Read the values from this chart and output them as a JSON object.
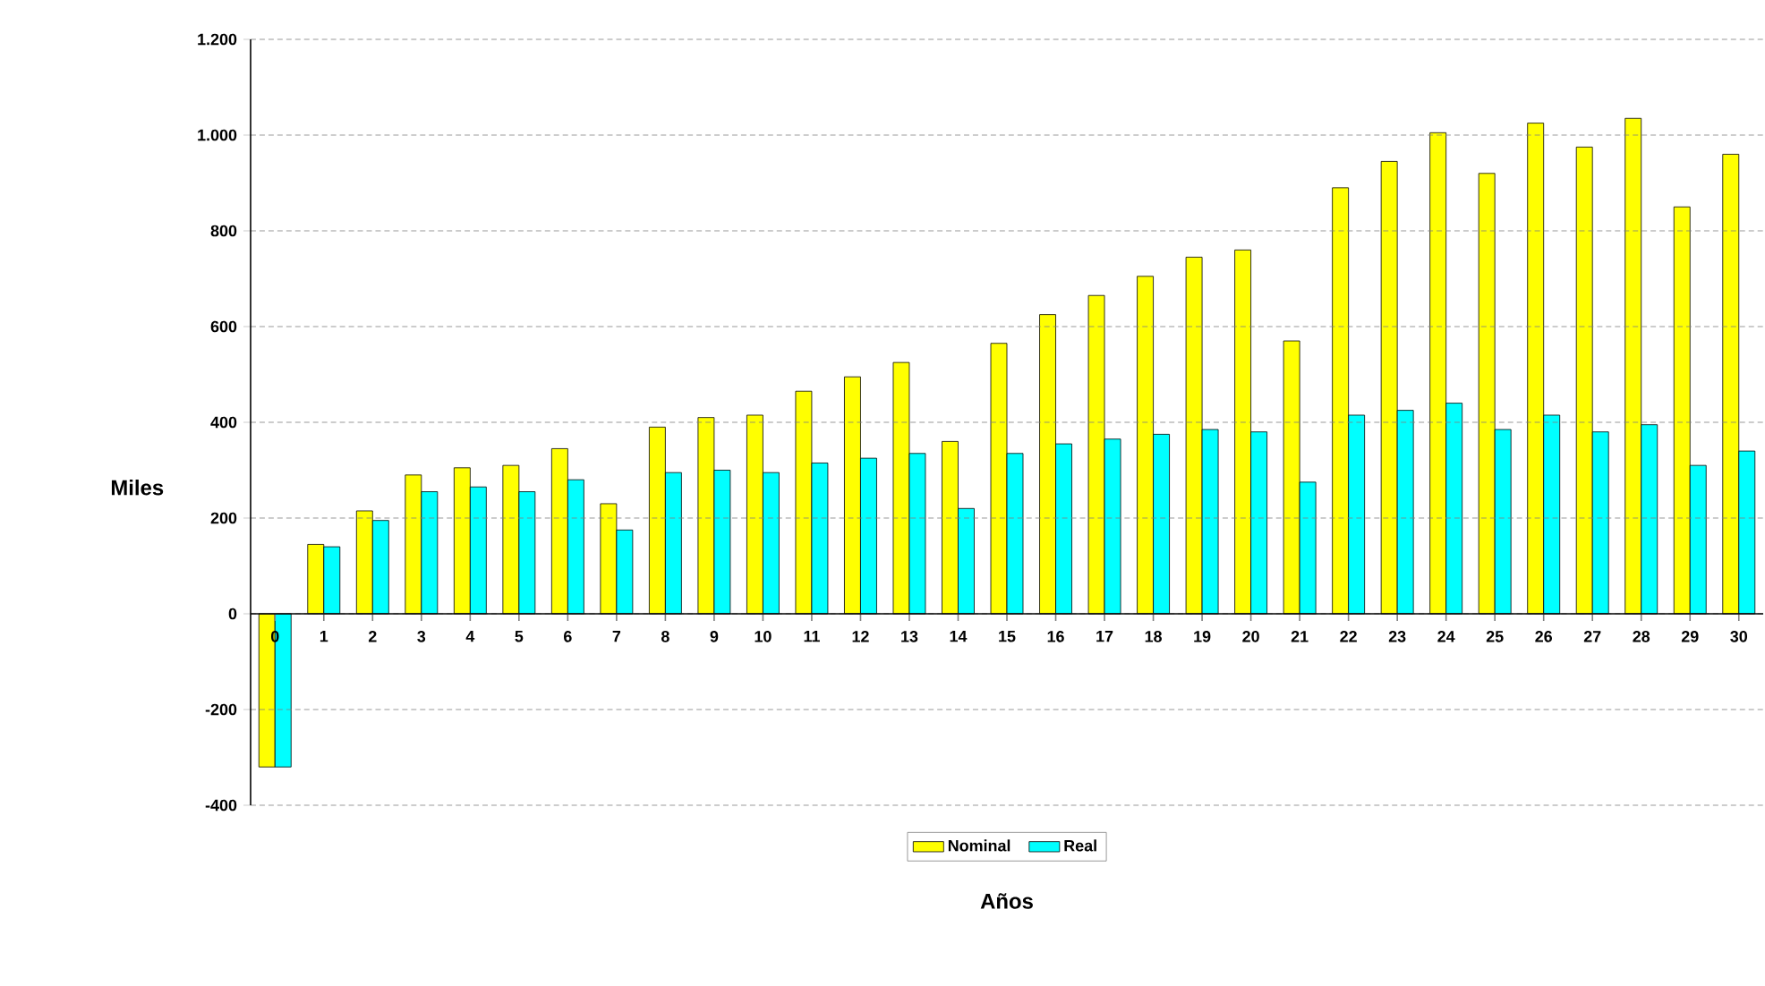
{
  "chart_data": {
    "type": "bar",
    "xlabel": "Años",
    "ylabel": "Miles",
    "categories": [
      "0",
      "1",
      "2",
      "3",
      "4",
      "5",
      "6",
      "7",
      "8",
      "9",
      "10",
      "11",
      "12",
      "13",
      "14",
      "15",
      "16",
      "17",
      "18",
      "19",
      "20",
      "21",
      "22",
      "23",
      "24",
      "25",
      "26",
      "27",
      "28",
      "29",
      "30"
    ],
    "series": [
      {
        "name": "Nominal",
        "color": "#ffff00",
        "values": [
          -320,
          145,
          215,
          290,
          305,
          310,
          345,
          230,
          390,
          410,
          415,
          465,
          495,
          525,
          360,
          565,
          625,
          665,
          705,
          745,
          760,
          570,
          890,
          945,
          1005,
          920,
          1025,
          975,
          1035,
          850,
          960
        ]
      },
      {
        "name": "Real",
        "color": "#00ffff",
        "values": [
          -320,
          140,
          195,
          255,
          265,
          255,
          280,
          175,
          295,
          300,
          295,
          315,
          325,
          335,
          220,
          335,
          355,
          365,
          375,
          385,
          380,
          275,
          415,
          425,
          440,
          385,
          415,
          380,
          395,
          310,
          340
        ]
      }
    ],
    "ylim": [
      -400,
      1200
    ],
    "yticks": [
      {
        "value": -400,
        "label": "-400"
      },
      {
        "value": -200,
        "label": "-200"
      },
      0,
      200,
      400,
      600,
      800,
      {
        "value": 1000,
        "label": "1.000"
      },
      {
        "value": 1200,
        "label": "1.200"
      }
    ],
    "grid": "y",
    "legend": "bottom"
  }
}
